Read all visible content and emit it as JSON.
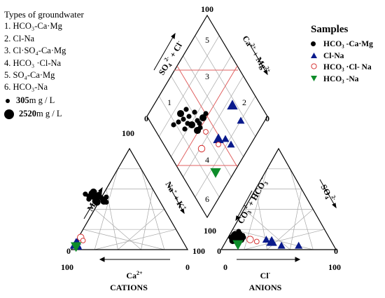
{
  "chart_data": {
    "type": "scatter",
    "subtype": "piper-diagram",
    "groundwater_types_title": "Types of groundwater",
    "groundwater_types": [
      {
        "num": "1.",
        "name": "HCO₃-Ca·Mg"
      },
      {
        "num": "2.",
        "name": "Cl-Na"
      },
      {
        "num": "3.",
        "name": "Cl·SO₄-Ca·Mg"
      },
      {
        "num": "4.",
        "name": "HCO₃ ·Cl-Na"
      },
      {
        "num": "5.",
        "name": "SO₄-Ca·Mg"
      },
      {
        "num": "6.",
        "name": "HCO₃-Na"
      }
    ],
    "size_legend": [
      {
        "value": "305",
        "unit": "m g / L"
      },
      {
        "value": "2520",
        "unit": "m g / L"
      }
    ],
    "samples_title": "Samples",
    "series": [
      {
        "name": "HCO₃ -Ca·Mg",
        "marker": "circle",
        "color": "#000000",
        "cation_pts": [
          [
            20,
            54
          ],
          [
            25,
            52
          ],
          [
            22,
            50
          ],
          [
            15,
            53
          ],
          [
            18,
            52
          ],
          [
            28,
            48
          ],
          [
            20,
            48
          ],
          [
            30,
            47
          ],
          [
            17,
            56
          ],
          [
            24,
            55
          ],
          [
            22,
            47
          ],
          [
            27,
            49
          ],
          [
            30,
            52
          ],
          [
            12,
            55
          ],
          [
            15,
            50
          ],
          [
            19,
            57
          ],
          [
            21,
            52
          ],
          [
            26,
            51
          ]
        ],
        "anion_pts": [
          [
            10,
            12
          ],
          [
            8,
            10
          ],
          [
            12,
            8
          ],
          [
            9,
            15
          ],
          [
            15,
            8
          ],
          [
            14,
            15
          ],
          [
            11,
            9
          ],
          [
            18,
            12
          ],
          [
            13,
            18
          ],
          [
            7,
            12
          ],
          [
            16,
            10
          ],
          [
            10,
            16
          ],
          [
            12,
            11
          ],
          [
            11,
            13
          ],
          [
            14,
            10
          ],
          [
            9,
            9
          ],
          [
            17,
            14
          ],
          [
            8,
            13
          ]
        ]
      },
      {
        "name": "Cl-Na",
        "marker": "triangle-up",
        "color": "#0a1a8c",
        "cation_pts": [
          [
            4,
            6
          ],
          [
            6,
            3
          ],
          [
            2,
            4
          ],
          [
            5,
            8
          ]
        ],
        "anion_pts": [
          [
            43,
            8
          ],
          [
            52,
            4
          ],
          [
            67,
            4
          ],
          [
            38,
            10
          ]
        ]
      },
      {
        "name": "HCO₃ ·Cl- Na",
        "marker": "open-circle",
        "color": "#d22020",
        "cation_pts": [
          [
            8,
            12
          ],
          [
            10,
            9
          ]
        ],
        "anion_pts": [
          [
            24,
            10
          ],
          [
            30,
            8
          ]
        ]
      },
      {
        "name": "HCO₃ -Na",
        "marker": "triangle-down",
        "color": "#0e8c2a",
        "cation_pts": [
          [
            4,
            3
          ]
        ],
        "anion_pts": [
          [
            14,
            5
          ]
        ]
      }
    ],
    "cations": {
      "label": "CATIONS",
      "axis_mg": "Mg",
      "axis_mg_sup": "2+",
      "axis_na": "Na",
      "axis_na_sup": "+",
      "axis_k": "K",
      "axis_k_sup": "+",
      "axis_ca": "Ca",
      "axis_ca_sup": "2+"
    },
    "anions": {
      "label": "ANIONS",
      "axis_so4": "SO",
      "axis_so4_sub": "4",
      "axis_so4_sup": "2-",
      "axis_co3": "CO",
      "axis_co3_sub": "3",
      "axis_co3_sup": "2-",
      "axis_hco3": "+ HCO",
      "axis_hco3_sub": "3",
      "axis_hco3_sup": "-",
      "axis_cl": "Cl",
      "axis_cl_sup": "-"
    },
    "diamond": {
      "axis_top_left": "SO₄²⁻ + Cl⁻",
      "axis_top_right": "Ca²⁺ + Mg²⁺",
      "region_numbers": [
        "1",
        "2",
        "3",
        "4",
        "5",
        "6"
      ]
    },
    "tick_labels": {
      "zero": "0",
      "hundred": "100"
    }
  },
  "colors": {
    "cl_na": "#0a1a8c",
    "hco3_na": "#0e8c2a",
    "hco3_cl_na": "#d22020",
    "region_lines": "#e06060"
  }
}
